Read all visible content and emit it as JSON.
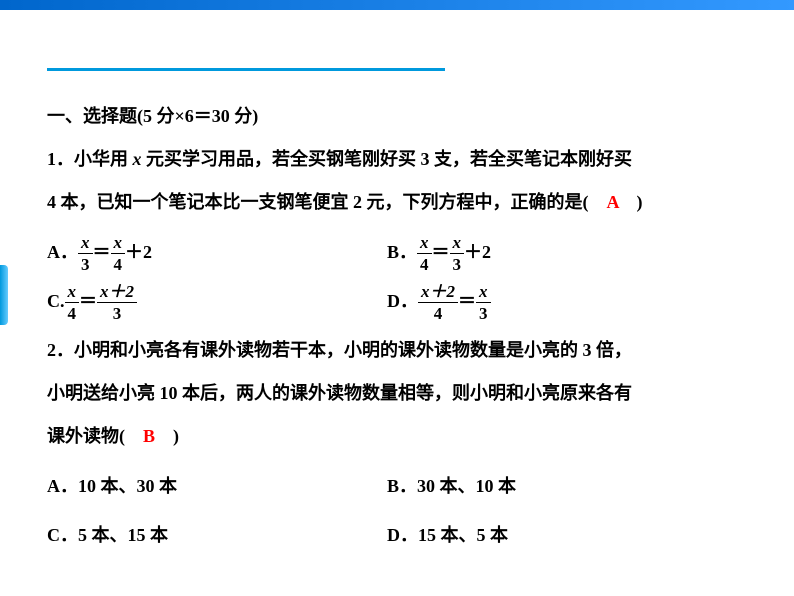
{
  "colors": {
    "top_border_start": "#0066cc",
    "top_border_end": "#3399ff",
    "decorative_line": "#0099dd",
    "answer_color": "#ff0000",
    "text_color": "#000000",
    "background": "#ffffff"
  },
  "typography": {
    "body_fontsize": 18,
    "line_height": 2.4,
    "font_family": "SimSun"
  },
  "section": {
    "title": "一、选择题(5 分×6＝30 分)"
  },
  "q1": {
    "line1_part1": "1．小华用 ",
    "line1_var": "x",
    "line1_part2": " 元买学习用品，若全买钢笔刚好买 3 支，若全买笔记本刚好买",
    "line2_part1": "4 本，已知一个笔记本比一支钢笔便宜 2 元，下列方程中，正确的是(　",
    "answer": "A",
    "line2_part2": "　)",
    "optA_label": "A．",
    "optA_frac1_num": "x",
    "optA_frac1_den": "3",
    "optA_mid": "＝",
    "optA_frac2_num": "x",
    "optA_frac2_den": "4",
    "optA_tail": "＋2",
    "optB_label": "B．",
    "optB_frac1_num": "x",
    "optB_frac1_den": "4",
    "optB_mid": "＝",
    "optB_frac2_num": "x",
    "optB_frac2_den": "3",
    "optB_tail": "＋2",
    "optC_label": "C.",
    "optC_frac1_num": "x",
    "optC_frac1_den": "4",
    "optC_mid": "＝",
    "optC_frac2_num": "x＋2",
    "optC_frac2_den": "3",
    "optD_label": "D．",
    "optD_frac1_num": "x＋2",
    "optD_frac1_den": "4",
    "optD_mid": "＝",
    "optD_frac2_num": "x",
    "optD_frac2_den": "3"
  },
  "q2": {
    "line1": "2．小明和小亮各有课外读物若干本，小明的课外读物数量是小亮的 3 倍，",
    "line2": "小明送给小亮 10 本后，两人的课外读物数量相等，则小明和小亮原来各有",
    "line3_part1": "课外读物(　",
    "answer": "B",
    "line3_part2": "　)",
    "optA": "A．10 本、30 本",
    "optB": "B．30 本、10 本",
    "optC": "C．5 本、15 本",
    "optD": "D．15 本、5 本"
  }
}
